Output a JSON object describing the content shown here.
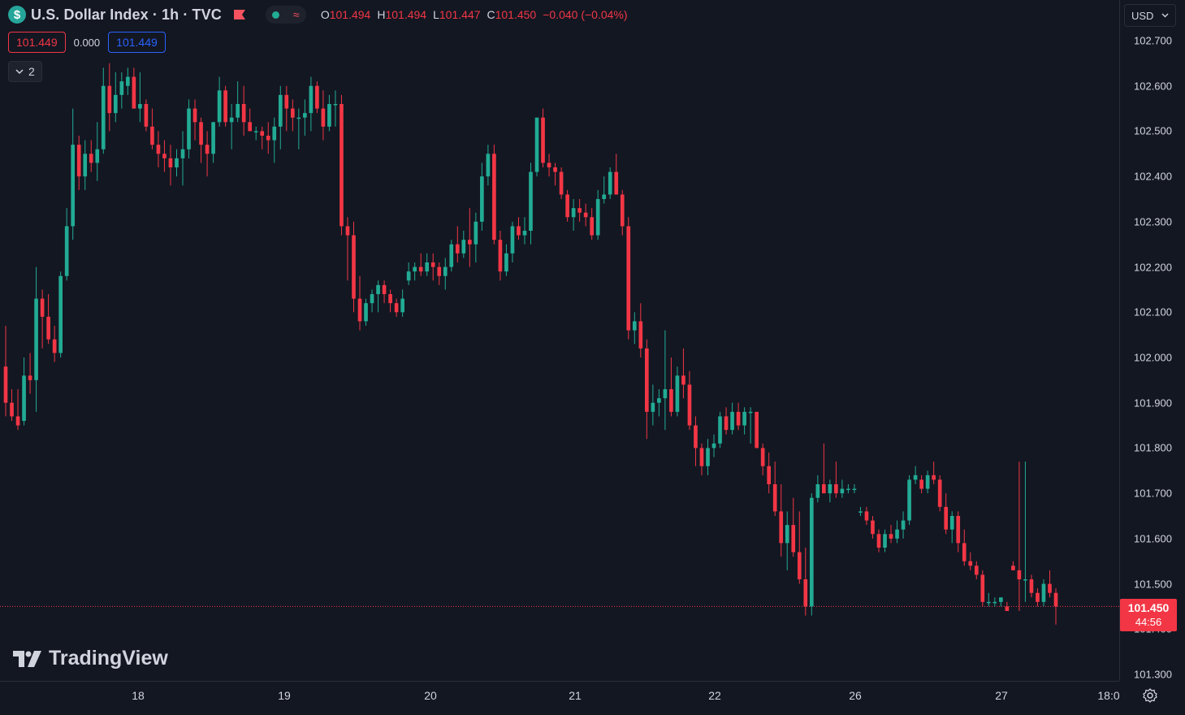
{
  "header": {
    "symbol_icon": "$",
    "title": "U.S. Dollar Index · 1h · TVC",
    "ohlc": {
      "o_label": "O",
      "o_value": "101.494",
      "h_label": "H",
      "h_value": "101.494",
      "l_label": "L",
      "l_value": "101.447",
      "c_label": "C",
      "c_value": "101.450",
      "change": "−0.040 (−0.04%)"
    },
    "status_icons": [
      "market-open-dot",
      "delayed-data-icon"
    ]
  },
  "trade": {
    "bid": "101.449",
    "spread": "0.000",
    "ask": "101.449"
  },
  "indicators_toggle": {
    "count": "2"
  },
  "currency": {
    "selected": "USD"
  },
  "price_axis": {
    "ticks": [
      "102.700",
      "102.600",
      "102.500",
      "102.400",
      "102.300",
      "102.200",
      "102.100",
      "102.000",
      "101.900",
      "101.800",
      "101.700",
      "101.600",
      "101.500",
      "101.400",
      "101.300"
    ]
  },
  "last_price": {
    "value": "101.450",
    "countdown": "44:56"
  },
  "time_axis": {
    "ticks": [
      "18",
      "19",
      "20",
      "21",
      "22",
      "26",
      "27",
      "18:0"
    ]
  },
  "logo": {
    "text": "TradingView"
  },
  "colors": {
    "up": "#22ab94",
    "down": "#f23645",
    "background": "#131722",
    "grid": "#2a2e39",
    "axis_text": "#d1d4dc"
  },
  "chart_data": {
    "type": "candlestick",
    "symbol": "U.S. Dollar Index",
    "interval": "1h",
    "ylim": [
      101.27,
      102.76
    ],
    "y_ticks": [
      102.7,
      102.6,
      102.5,
      102.4,
      102.3,
      102.2,
      102.1,
      102.0,
      101.9,
      101.8,
      101.7,
      101.6,
      101.5,
      101.4,
      101.3
    ],
    "x_ticks": [
      "18",
      "19",
      "20",
      "21",
      "22",
      "26",
      "27",
      "18:0"
    ],
    "last_price": 101.45,
    "ohlc": [
      [
        101.98,
        102.07,
        101.87,
        101.9
      ],
      [
        101.9,
        101.93,
        101.86,
        101.87
      ],
      [
        101.87,
        101.93,
        101.84,
        101.85
      ],
      [
        101.86,
        102.0,
        101.85,
        101.96
      ],
      [
        101.96,
        102.01,
        101.92,
        101.95
      ],
      [
        101.95,
        102.2,
        101.88,
        102.13
      ],
      [
        102.13,
        102.15,
        102.02,
        102.09
      ],
      [
        102.09,
        102.14,
        102.03,
        102.04
      ],
      [
        102.04,
        102.07,
        101.99,
        102.01
      ],
      [
        102.01,
        102.19,
        102.0,
        102.18
      ],
      [
        102.18,
        102.33,
        102.17,
        102.29
      ],
      [
        102.29,
        102.55,
        102.26,
        102.47
      ],
      [
        102.47,
        102.49,
        102.37,
        102.4
      ],
      [
        102.4,
        102.48,
        102.37,
        102.45
      ],
      [
        102.45,
        102.48,
        102.41,
        102.43
      ],
      [
        102.43,
        102.52,
        102.39,
        102.46
      ],
      [
        102.46,
        102.64,
        102.45,
        102.6
      ],
      [
        102.6,
        102.65,
        102.5,
        102.54
      ],
      [
        102.54,
        102.63,
        102.52,
        102.58
      ],
      [
        102.58,
        102.63,
        102.55,
        102.61
      ],
      [
        102.6,
        102.64,
        102.58,
        102.62
      ],
      [
        102.62,
        102.64,
        102.55,
        102.55
      ],
      [
        102.55,
        102.63,
        102.52,
        102.56
      ],
      [
        102.56,
        102.57,
        102.5,
        102.51
      ],
      [
        102.51,
        102.55,
        102.46,
        102.47
      ],
      [
        102.47,
        102.5,
        102.42,
        102.45
      ],
      [
        102.45,
        102.48,
        102.41,
        102.44
      ],
      [
        102.44,
        102.47,
        102.38,
        102.42
      ],
      [
        102.42,
        102.46,
        102.4,
        102.44
      ],
      [
        102.44,
        102.5,
        102.38,
        102.46
      ],
      [
        102.46,
        102.57,
        102.44,
        102.55
      ],
      [
        102.55,
        102.57,
        102.48,
        102.52
      ],
      [
        102.52,
        102.53,
        102.43,
        102.47
      ],
      [
        102.47,
        102.5,
        102.4,
        102.45
      ],
      [
        102.45,
        102.52,
        102.43,
        102.52
      ],
      [
        102.52,
        102.62,
        102.51,
        102.59
      ],
      [
        102.59,
        102.6,
        102.51,
        102.52
      ],
      [
        102.52,
        102.56,
        102.46,
        102.53
      ],
      [
        102.53,
        102.61,
        102.52,
        102.56
      ],
      [
        102.56,
        102.6,
        102.49,
        102.52
      ],
      [
        102.52,
        102.55,
        102.5,
        102.5
      ],
      [
        102.5,
        102.51,
        102.48,
        102.5
      ],
      [
        102.5,
        102.51,
        102.46,
        102.49
      ],
      [
        102.49,
        102.52,
        102.45,
        102.48
      ],
      [
        102.48,
        102.53,
        102.43,
        102.51
      ],
      [
        102.51,
        102.6,
        102.46,
        102.58
      ],
      [
        102.58,
        102.6,
        102.5,
        102.55
      ],
      [
        102.55,
        102.57,
        102.5,
        102.53
      ],
      [
        102.53,
        102.55,
        102.46,
        102.53
      ],
      [
        102.53,
        102.57,
        102.49,
        102.54
      ],
      [
        102.54,
        102.62,
        102.5,
        102.6
      ],
      [
        102.6,
        102.61,
        102.54,
        102.55
      ],
      [
        102.55,
        102.59,
        102.48,
        102.51
      ],
      [
        102.51,
        102.58,
        102.5,
        102.56
      ],
      [
        102.56,
        102.59,
        102.51,
        102.56
      ],
      [
        102.56,
        102.58,
        102.27,
        102.29
      ],
      [
        102.29,
        102.31,
        102.17,
        102.27
      ],
      [
        102.27,
        102.3,
        102.1,
        102.13
      ],
      [
        102.13,
        102.18,
        102.06,
        102.08
      ],
      [
        102.08,
        102.13,
        102.07,
        102.12
      ],
      [
        102.12,
        102.15,
        102.1,
        102.14
      ],
      [
        102.14,
        102.17,
        102.1,
        102.16
      ],
      [
        102.16,
        102.17,
        102.12,
        102.14
      ],
      [
        102.14,
        102.15,
        102.1,
        102.12
      ],
      [
        102.12,
        102.13,
        102.09,
        102.1
      ],
      [
        102.1,
        102.15,
        102.09,
        102.13
      ],
      [
        102.17,
        102.21,
        102.16,
        102.19
      ],
      [
        102.19,
        102.21,
        102.17,
        102.2
      ],
      [
        102.2,
        102.23,
        102.18,
        102.19
      ],
      [
        102.19,
        102.23,
        102.18,
        102.21
      ],
      [
        102.21,
        102.23,
        102.17,
        102.2
      ],
      [
        102.2,
        102.21,
        102.16,
        102.18
      ],
      [
        102.18,
        102.22,
        102.15,
        102.2
      ],
      [
        102.2,
        102.26,
        102.19,
        102.25
      ],
      [
        102.25,
        102.29,
        102.21,
        102.23
      ],
      [
        102.23,
        102.28,
        102.22,
        102.26
      ],
      [
        102.26,
        102.33,
        102.2,
        102.25
      ],
      [
        102.25,
        102.32,
        102.21,
        102.3
      ],
      [
        102.3,
        102.43,
        102.28,
        102.4
      ],
      [
        102.4,
        102.47,
        102.38,
        102.45
      ],
      [
        102.45,
        102.47,
        102.25,
        102.26
      ],
      [
        102.26,
        102.28,
        102.17,
        102.19
      ],
      [
        102.19,
        102.25,
        102.18,
        102.23
      ],
      [
        102.23,
        102.3,
        102.21,
        102.29
      ],
      [
        102.29,
        102.31,
        102.26,
        102.27
      ],
      [
        102.27,
        102.31,
        102.25,
        102.28
      ],
      [
        102.28,
        102.43,
        102.25,
        102.41
      ],
      [
        102.41,
        102.53,
        102.4,
        102.53
      ],
      [
        102.53,
        102.55,
        102.42,
        102.43
      ],
      [
        102.43,
        102.45,
        102.4,
        102.42
      ],
      [
        102.42,
        102.43,
        102.38,
        102.41
      ],
      [
        102.41,
        102.42,
        102.35,
        102.36
      ],
      [
        102.36,
        102.37,
        102.3,
        102.31
      ],
      [
        102.31,
        102.35,
        102.28,
        102.33
      ],
      [
        102.33,
        102.35,
        102.3,
        102.32
      ],
      [
        102.32,
        102.34,
        102.29,
        102.31
      ],
      [
        102.31,
        102.33,
        102.26,
        102.27
      ],
      [
        102.27,
        102.37,
        102.26,
        102.35
      ],
      [
        102.35,
        102.4,
        102.34,
        102.36
      ],
      [
        102.36,
        102.42,
        102.35,
        102.41
      ],
      [
        102.41,
        102.45,
        102.36,
        102.36
      ],
      [
        102.36,
        102.37,
        102.27,
        102.29
      ],
      [
        102.29,
        102.31,
        102.04,
        102.06
      ],
      [
        102.06,
        102.1,
        102.03,
        102.08
      ],
      [
        102.08,
        102.12,
        102.0,
        102.02
      ],
      [
        102.02,
        102.04,
        101.82,
        101.88
      ],
      [
        101.88,
        101.94,
        101.85,
        101.9
      ],
      [
        101.9,
        101.93,
        101.87,
        101.91
      ],
      [
        101.91,
        102.06,
        101.84,
        101.93
      ],
      [
        101.93,
        102.0,
        101.87,
        101.88
      ],
      [
        101.88,
        101.98,
        101.87,
        101.96
      ],
      [
        101.96,
        102.02,
        101.91,
        101.94
      ],
      [
        101.94,
        101.97,
        101.84,
        101.85
      ],
      [
        101.85,
        101.87,
        101.76,
        101.8
      ],
      [
        101.8,
        101.81,
        101.74,
        101.76
      ],
      [
        101.76,
        101.82,
        101.74,
        101.8
      ],
      [
        101.8,
        101.83,
        101.78,
        101.81
      ],
      [
        101.81,
        101.88,
        101.8,
        101.87
      ],
      [
        101.87,
        101.89,
        101.83,
        101.84
      ],
      [
        101.84,
        101.9,
        101.83,
        101.88
      ],
      [
        101.88,
        101.9,
        101.84,
        101.85
      ],
      [
        101.85,
        101.89,
        101.83,
        101.88
      ],
      [
        101.88,
        101.89,
        101.81,
        101.88
      ],
      [
        101.88,
        101.88,
        101.8,
        101.8
      ],
      [
        101.8,
        101.81,
        101.74,
        101.76
      ],
      [
        101.76,
        101.79,
        101.7,
        101.72
      ],
      [
        101.72,
        101.77,
        101.65,
        101.66
      ],
      [
        101.66,
        101.72,
        101.56,
        101.59
      ],
      [
        101.59,
        101.66,
        101.53,
        101.63
      ],
      [
        101.63,
        101.69,
        101.56,
        101.57
      ],
      [
        101.57,
        101.66,
        101.5,
        101.51
      ],
      [
        101.51,
        101.58,
        101.43,
        101.45
      ],
      [
        101.45,
        101.7,
        101.43,
        101.69
      ],
      [
        101.69,
        101.74,
        101.68,
        101.72
      ],
      [
        101.72,
        101.81,
        101.71,
        101.7
      ],
      [
        101.7,
        101.73,
        101.68,
        101.72
      ],
      [
        101.72,
        101.77,
        101.69,
        101.7
      ],
      [
        101.7,
        101.73,
        101.69,
        101.71
      ],
      [
        101.71,
        101.72,
        101.7,
        101.71
      ],
      [
        101.71,
        101.72,
        101.7,
        101.71
      ],
      [
        101.66,
        101.67,
        101.65,
        101.66
      ],
      [
        101.66,
        101.67,
        101.63,
        101.64
      ],
      [
        101.64,
        101.65,
        101.6,
        101.61
      ],
      [
        101.61,
        101.62,
        101.57,
        101.58
      ],
      [
        101.58,
        101.62,
        101.57,
        101.61
      ],
      [
        101.61,
        101.63,
        101.59,
        101.6
      ],
      [
        101.6,
        101.64,
        101.59,
        101.62
      ],
      [
        101.62,
        101.66,
        101.6,
        101.64
      ],
      [
        101.64,
        101.74,
        101.63,
        101.73
      ],
      [
        101.73,
        101.76,
        101.72,
        101.74
      ],
      [
        101.73,
        101.74,
        101.7,
        101.71
      ],
      [
        101.71,
        101.75,
        101.7,
        101.74
      ],
      [
        101.74,
        101.77,
        101.72,
        101.73
      ],
      [
        101.73,
        101.74,
        101.66,
        101.67
      ],
      [
        101.67,
        101.7,
        101.61,
        101.62
      ],
      [
        101.62,
        101.66,
        101.59,
        101.65
      ],
      [
        101.65,
        101.66,
        101.57,
        101.59
      ],
      [
        101.59,
        101.62,
        101.54,
        101.55
      ],
      [
        101.55,
        101.57,
        101.53,
        101.54
      ],
      [
        101.54,
        101.55,
        101.51,
        101.52
      ],
      [
        101.52,
        101.53,
        101.45,
        101.46
      ],
      [
        101.46,
        101.48,
        101.45,
        101.46
      ],
      [
        101.46,
        101.47,
        101.45,
        101.46
      ],
      [
        101.46,
        101.47,
        101.45,
        101.47
      ],
      [
        101.45,
        101.46,
        101.44,
        101.44
      ],
      [
        101.54,
        101.55,
        101.53,
        101.53
      ],
      [
        101.53,
        101.77,
        101.44,
        101.51
      ],
      [
        101.51,
        101.77,
        101.46,
        101.51
      ],
      [
        101.51,
        101.52,
        101.47,
        101.48
      ],
      [
        101.48,
        101.49,
        101.45,
        101.46
      ],
      [
        101.46,
        101.51,
        101.45,
        101.5
      ],
      [
        101.5,
        101.53,
        101.47,
        101.48
      ],
      [
        101.48,
        101.49,
        101.41,
        101.45
      ]
    ]
  }
}
